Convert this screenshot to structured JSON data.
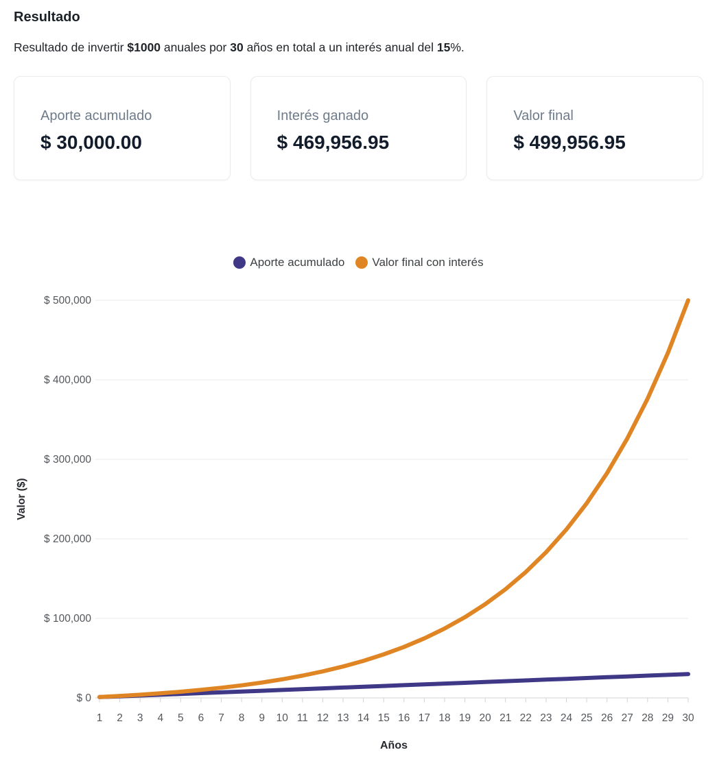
{
  "page": {
    "title": "Resultado",
    "description": {
      "part1": "Resultado de invertir ",
      "amount": "$1000",
      "part2": " anuales por ",
      "years": "30",
      "part3": " años en total a un interés anual del ",
      "rate": "15",
      "part4": "%."
    }
  },
  "cards": [
    {
      "label": "Aporte acumulado",
      "value": "$ 30,000.00"
    },
    {
      "label": "Interés ganado",
      "value": "$ 469,956.95"
    },
    {
      "label": "Valor final",
      "value": "$ 499,956.95"
    }
  ],
  "chart_data": {
    "type": "line",
    "x": [
      1,
      2,
      3,
      4,
      5,
      6,
      7,
      8,
      9,
      10,
      11,
      12,
      13,
      14,
      15,
      16,
      17,
      18,
      19,
      20,
      21,
      22,
      23,
      24,
      25,
      26,
      27,
      28,
      29,
      30
    ],
    "series": [
      {
        "name": "Aporte acumulado",
        "color": "#3F3887",
        "values": [
          1000,
          2000,
          3000,
          4000,
          5000,
          6000,
          7000,
          8000,
          9000,
          10000,
          11000,
          12000,
          13000,
          14000,
          15000,
          16000,
          17000,
          18000,
          19000,
          20000,
          21000,
          22000,
          23000,
          24000,
          25000,
          26000,
          27000,
          28000,
          29000,
          30000
        ]
      },
      {
        "name": "Valor final con interés",
        "color": "#E08524",
        "values": [
          1150,
          2472.5,
          3993.38,
          5742.38,
          7753.74,
          10066.8,
          12726.82,
          15785.84,
          19303.72,
          23349.28,
          28001.67,
          33351.92,
          39504.71,
          46580.41,
          54717.47,
          64075.09,
          74836.36,
          87211.81,
          101443.58,
          117810.12,
          136631.64,
          158276.38,
          183167.84,
          211793.02,
          244711.97,
          282568.77,
          326104.08,
          376169.69,
          433745.15,
          499956.95
        ]
      }
    ],
    "xlabel": "Años",
    "ylabel": "Valor ($)",
    "ylim": [
      0,
      500000
    ],
    "ytick_values": [
      0,
      100000,
      200000,
      300000,
      400000,
      500000
    ],
    "ytick_labels": [
      "$ 0",
      "$ 100,000",
      "$ 200,000",
      "$ 300,000",
      "$ 400,000",
      "$ 500,000"
    ],
    "legend_position": "top",
    "grid": "horizontal"
  }
}
